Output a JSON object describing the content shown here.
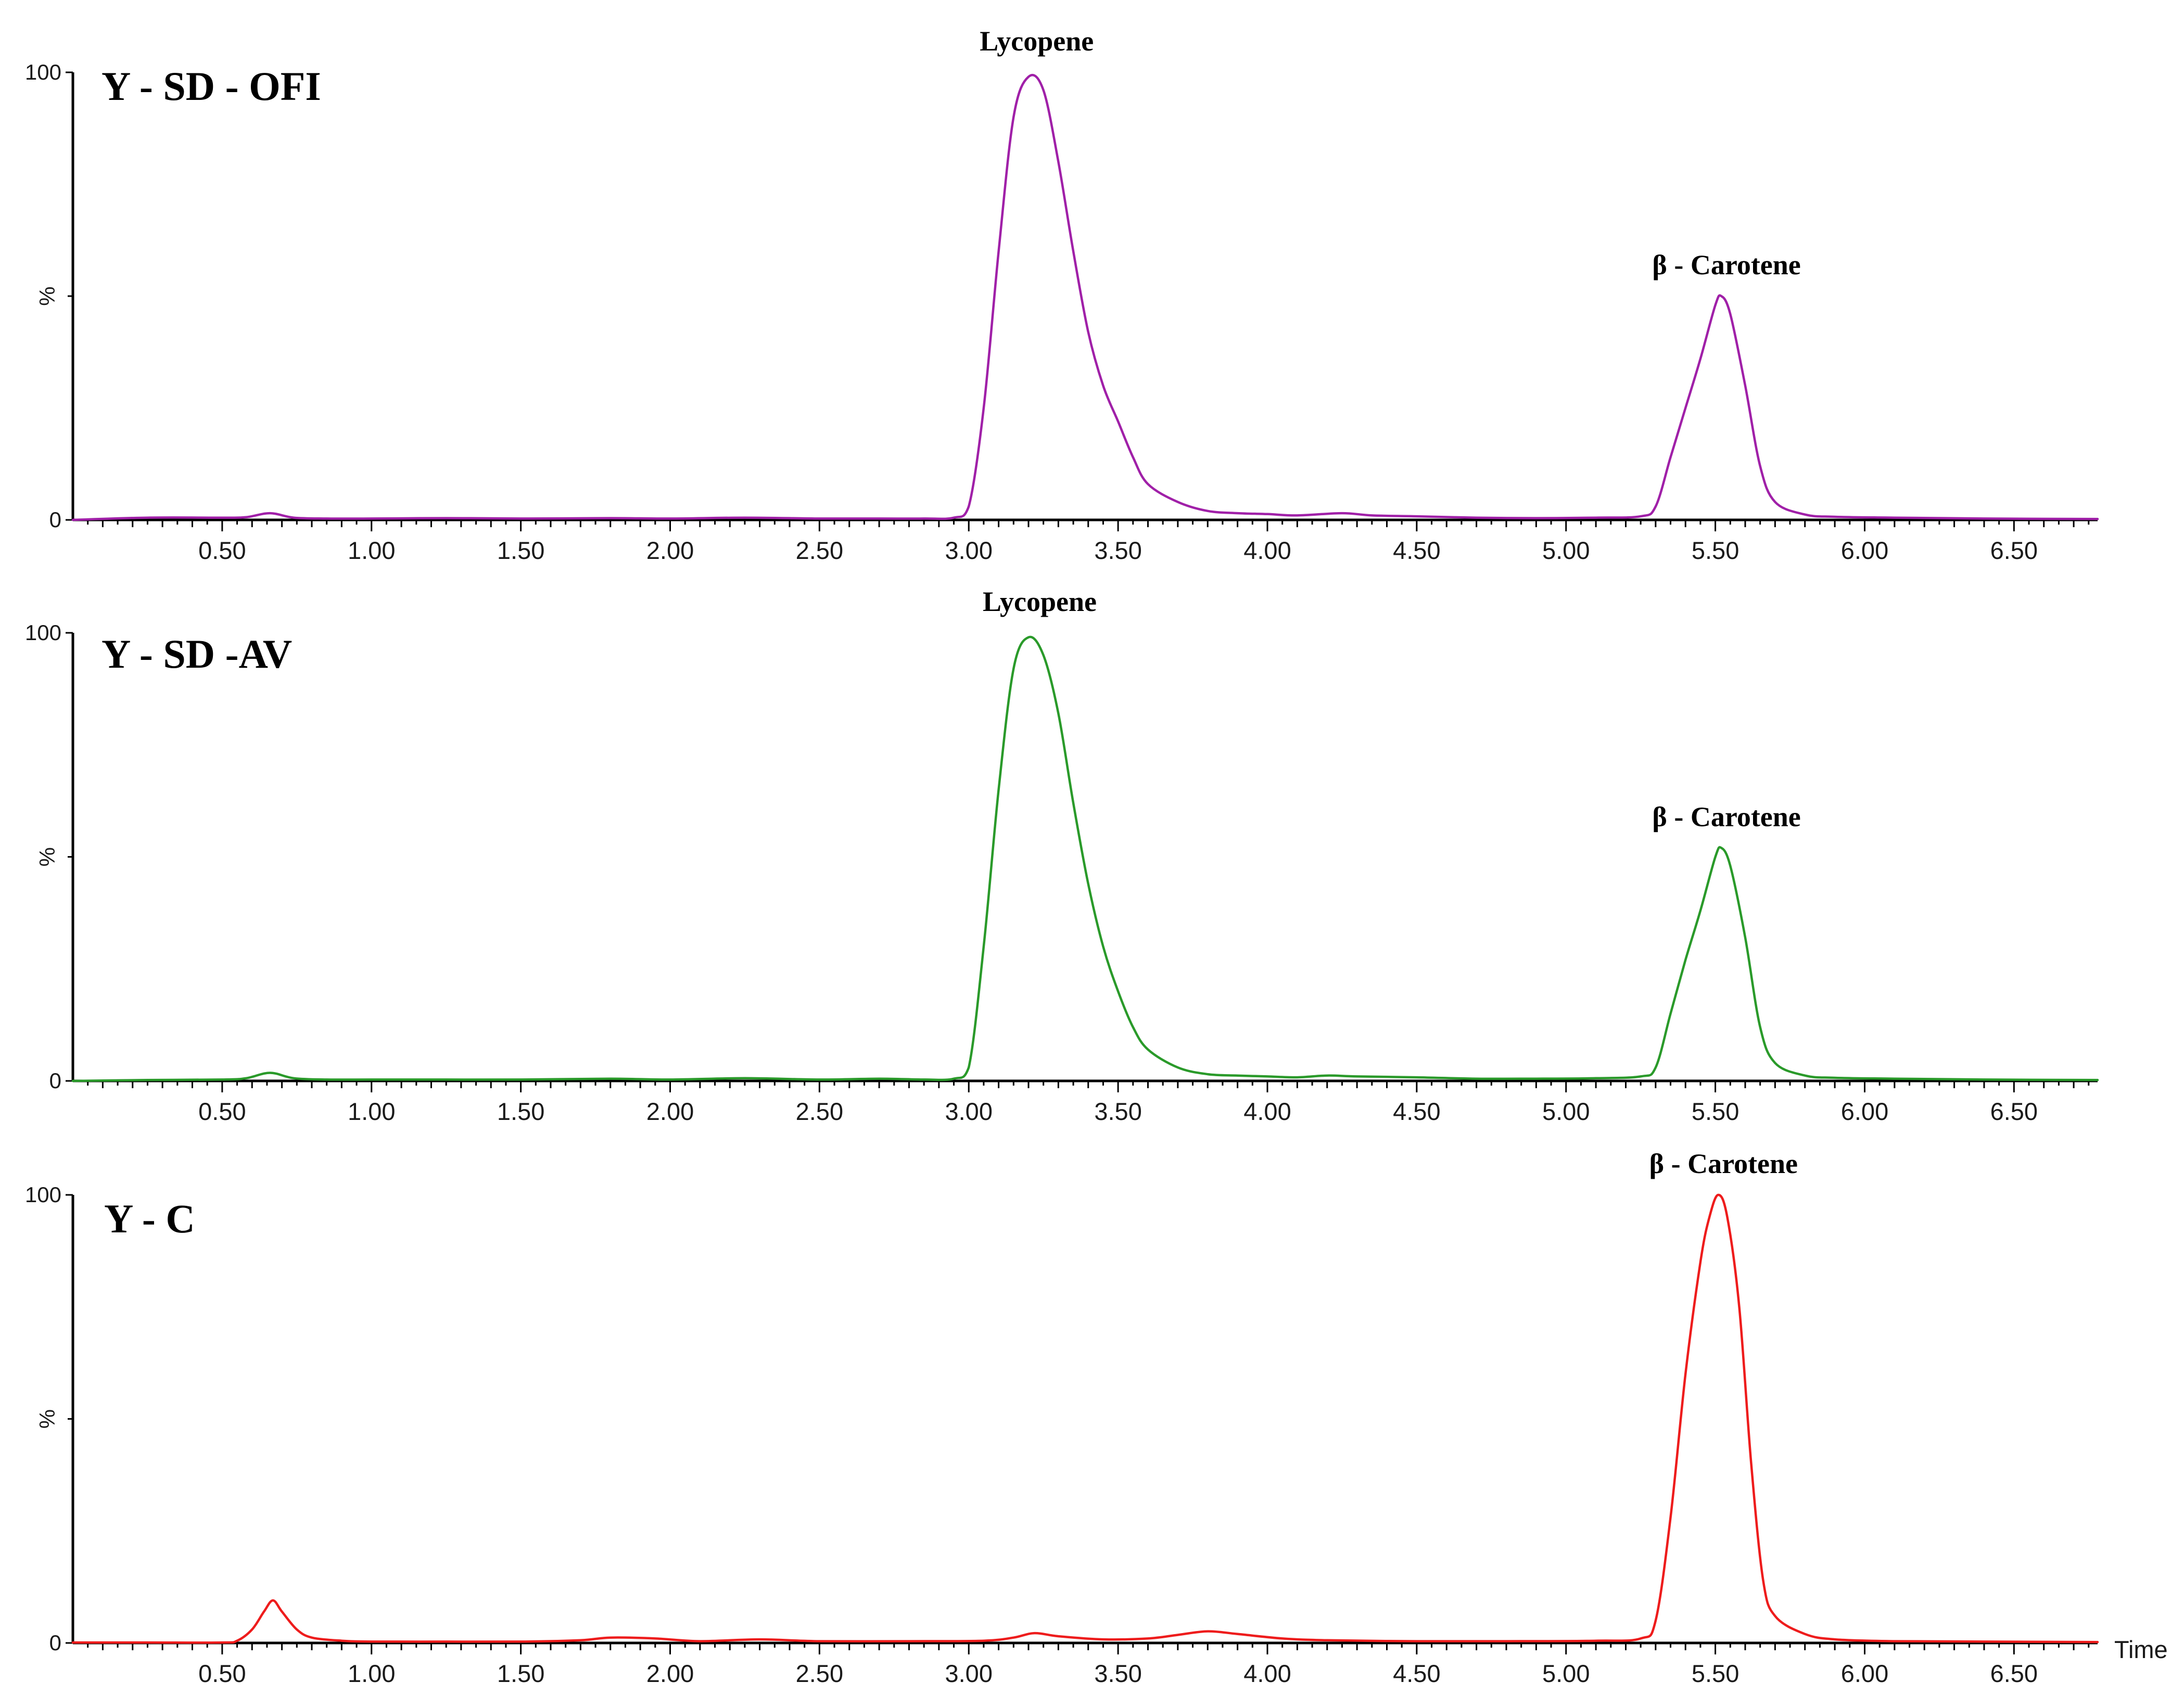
{
  "chart_data": [
    {
      "type": "line",
      "panel_title": "Y - SD - OFI",
      "color": "#a020a8",
      "xlabel": "",
      "ylabel": "%",
      "xlim": [
        0.0,
        6.78
      ],
      "ylim": [
        0,
        100
      ],
      "x_ticks": [
        "0.50",
        "1.00",
        "1.50",
        "2.00",
        "2.50",
        "3.00",
        "3.50",
        "4.00",
        "4.50",
        "5.00",
        "5.50",
        "6.00",
        "6.50"
      ],
      "y_ticks": [
        "100",
        "%",
        "0"
      ],
      "peaks": [
        {
          "label": "Lycopene",
          "x": 3.21,
          "y": 100
        },
        {
          "label": "β - Carotene",
          "x": 5.52,
          "y": 50
        }
      ],
      "series": [
        {
          "x": [
            0.0,
            0.25,
            0.5,
            0.58,
            0.66,
            0.74,
            0.85,
            1.0,
            1.25,
            1.5,
            1.8,
            2.0,
            2.25,
            2.5,
            2.7,
            2.85,
            2.95,
            3.0,
            3.05,
            3.1,
            3.15,
            3.2,
            3.25,
            3.3,
            3.35,
            3.4,
            3.45,
            3.5,
            3.55,
            3.6,
            3.7,
            3.8,
            3.9,
            4.0,
            4.1,
            4.25,
            4.35,
            4.5,
            4.7,
            4.9,
            5.1,
            5.25,
            5.3,
            5.35,
            5.4,
            5.45,
            5.5,
            5.52,
            5.55,
            5.6,
            5.65,
            5.7,
            5.8,
            5.9,
            6.1,
            6.4,
            6.78
          ],
          "y": [
            0,
            0.5,
            0.5,
            0.6,
            1.5,
            0.5,
            0.3,
            0.3,
            0.4,
            0.3,
            0.4,
            0.3,
            0.5,
            0.3,
            0.3,
            0.3,
            0.5,
            3,
            25,
            60,
            90,
            99,
            96,
            80,
            60,
            42,
            30,
            22,
            14,
            8,
            4,
            2,
            1.5,
            1.3,
            1.0,
            1.5,
            1.0,
            0.8,
            0.5,
            0.4,
            0.5,
            0.8,
            3,
            14,
            25,
            36,
            48,
            50,
            46,
            30,
            12,
            4,
            1.2,
            0.7,
            0.5,
            0.3,
            0.2
          ]
        }
      ]
    },
    {
      "type": "line",
      "panel_title": "Y - SD -AV",
      "color": "#2a9a2a",
      "xlabel": "",
      "ylabel": "%",
      "xlim": [
        0.0,
        6.78
      ],
      "ylim": [
        0,
        100
      ],
      "x_ticks": [
        "0.50",
        "1.00",
        "1.50",
        "2.00",
        "2.50",
        "3.00",
        "3.50",
        "4.00",
        "4.50",
        "5.00",
        "5.50",
        "6.00",
        "6.50"
      ],
      "y_ticks": [
        "100",
        "%",
        "0"
      ],
      "peaks": [
        {
          "label": "Lycopene",
          "x": 3.22,
          "y": 100
        },
        {
          "label": "β - Carotene",
          "x": 5.52,
          "y": 52
        }
      ],
      "series": [
        {
          "x": [
            0.0,
            0.25,
            0.5,
            0.58,
            0.66,
            0.74,
            0.85,
            1.0,
            1.25,
            1.5,
            1.8,
            2.0,
            2.25,
            2.5,
            2.7,
            2.85,
            2.95,
            3.0,
            3.05,
            3.1,
            3.15,
            3.2,
            3.25,
            3.3,
            3.35,
            3.4,
            3.45,
            3.5,
            3.55,
            3.6,
            3.7,
            3.8,
            3.9,
            4.0,
            4.1,
            4.2,
            4.3,
            4.5,
            4.7,
            4.9,
            5.1,
            5.25,
            5.3,
            5.35,
            5.4,
            5.45,
            5.5,
            5.52,
            5.55,
            5.6,
            5.65,
            5.7,
            5.8,
            5.9,
            6.1,
            6.4,
            6.78
          ],
          "y": [
            0,
            0.2,
            0.3,
            0.6,
            1.8,
            0.6,
            0.3,
            0.3,
            0.3,
            0.3,
            0.5,
            0.3,
            0.6,
            0.3,
            0.5,
            0.3,
            0.5,
            3,
            30,
            65,
            92,
            99,
            95,
            82,
            62,
            44,
            30,
            20,
            12,
            7,
            3,
            1.5,
            1.2,
            1.0,
            0.8,
            1.2,
            1.0,
            0.8,
            0.5,
            0.5,
            0.6,
            1.0,
            3,
            15,
            27,
            38,
            50,
            52,
            48,
            32,
            12,
            4,
            1.2,
            0.7,
            0.5,
            0.3,
            0.2
          ]
        }
      ]
    },
    {
      "type": "line",
      "panel_title": "Y - C",
      "color": "#ee1c1c",
      "xlabel": "Time",
      "ylabel": "%",
      "xlim": [
        0.0,
        6.78
      ],
      "ylim": [
        0,
        100
      ],
      "x_ticks": [
        "0.50",
        "1.00",
        "1.50",
        "2.00",
        "2.50",
        "3.00",
        "3.50",
        "4.00",
        "4.50",
        "5.00",
        "5.50",
        "6.00",
        "6.50"
      ],
      "y_ticks": [
        "100",
        "%",
        "0"
      ],
      "peaks": [
        {
          "label": "β - Carotene",
          "x": 5.51,
          "y": 100
        }
      ],
      "series": [
        {
          "x": [
            0.0,
            0.25,
            0.5,
            0.55,
            0.6,
            0.64,
            0.67,
            0.7,
            0.75,
            0.8,
            0.9,
            1.0,
            1.25,
            1.5,
            1.7,
            1.8,
            1.95,
            2.1,
            2.3,
            2.5,
            2.8,
            3.05,
            3.15,
            3.22,
            3.3,
            3.45,
            3.6,
            3.7,
            3.8,
            3.9,
            4.05,
            4.2,
            4.5,
            4.8,
            5.1,
            5.25,
            5.3,
            5.35,
            5.4,
            5.45,
            5.48,
            5.51,
            5.54,
            5.58,
            5.62,
            5.66,
            5.7,
            5.8,
            5.9,
            6.1,
            6.4,
            6.78
          ],
          "y": [
            0.1,
            0.1,
            0.1,
            0.5,
            3,
            7,
            9.5,
            7,
            3,
            1.2,
            0.5,
            0.3,
            0.3,
            0.3,
            0.6,
            1.2,
            1.0,
            0.4,
            0.8,
            0.4,
            0.4,
            0.5,
            1.2,
            2.2,
            1.5,
            0.8,
            1.0,
            1.8,
            2.6,
            2.0,
            1.0,
            0.6,
            0.4,
            0.4,
            0.5,
            1.0,
            5,
            28,
            60,
            85,
            95,
            100,
            95,
            75,
            40,
            14,
            6,
            2,
            0.8,
            0.4,
            0.3,
            0.2
          ]
        }
      ]
    }
  ]
}
